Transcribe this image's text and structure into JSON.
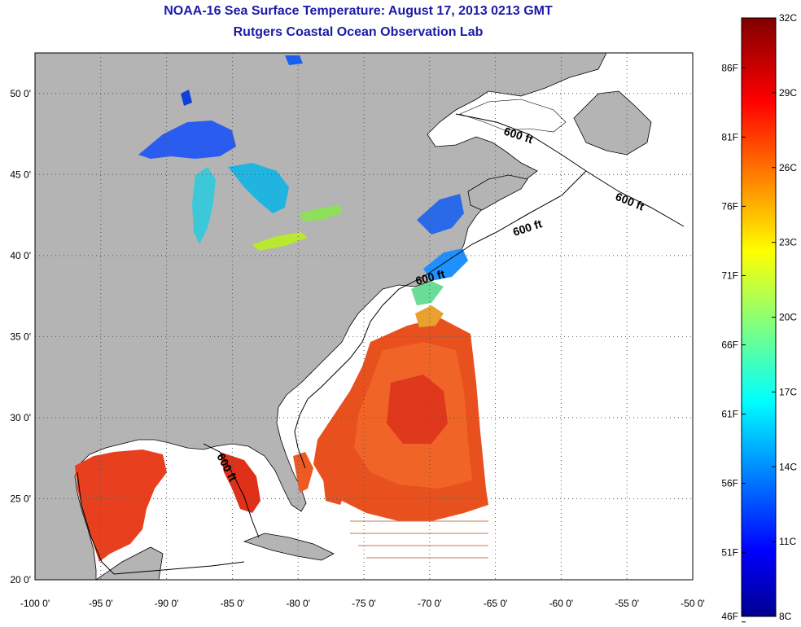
{
  "title": "NOAA-16 Sea Surface Temperature:  August 17, 2013 0213 GMT",
  "subtitle": "Rutgers Coastal Ocean Observation Lab",
  "contour_label": "600 ft",
  "map": {
    "lon_range": [
      -100,
      -50
    ],
    "lat_range": [
      20,
      52.5
    ],
    "x_ticks": [
      "-100 0'",
      "-95 0'",
      "-90 0'",
      "-85 0'",
      "-80 0'",
      "-75 0'",
      "-70 0'",
      "-65 0'",
      "-60 0'",
      "-55 0'",
      "-50 0'"
    ],
    "y_ticks": [
      "20 0'",
      "25 0'",
      "30 0'",
      "35 0'",
      "40 0'",
      "45 0'",
      "50 0'"
    ],
    "land_color": "#b4b4b4",
    "no_data_color": "#ffffff"
  },
  "colorbar": {
    "range_c": [
      8,
      32
    ],
    "celsius_labels": [
      "32C",
      "29C",
      "26C",
      "23C",
      "20C",
      "17C",
      "14C",
      "11C",
      "8C"
    ],
    "fahrenheit_labels": [
      "86F",
      "81F",
      "76F",
      "71F",
      "66F",
      "61F",
      "56F",
      "51F",
      "46F"
    ],
    "colormap": "jet"
  }
}
